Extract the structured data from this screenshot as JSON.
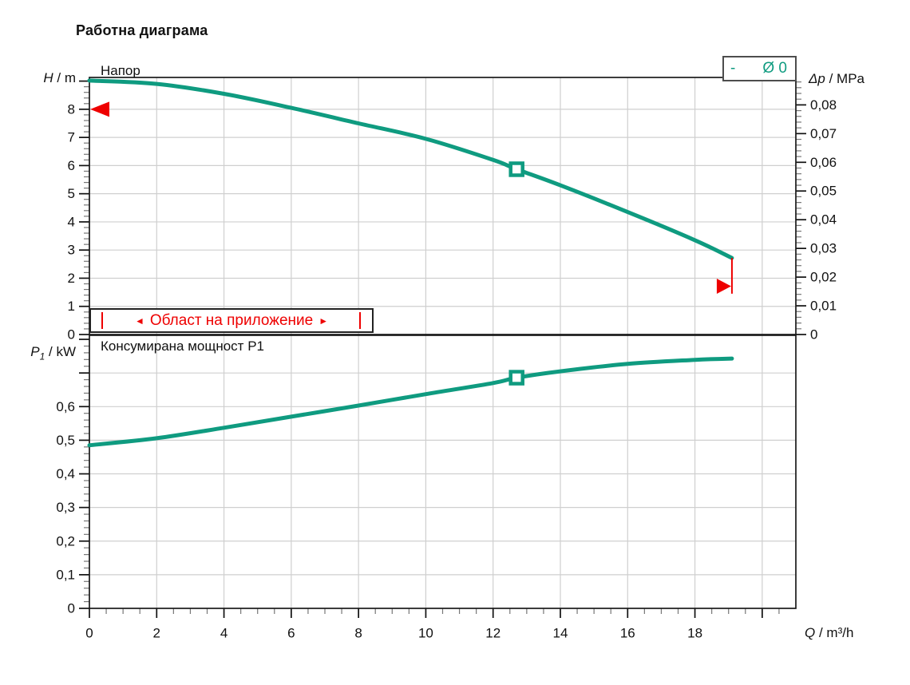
{
  "title": "Работна диаграма",
  "colors": {
    "curve": "#0f9b80",
    "red": "#ee0000",
    "grid": "#cfcfcf",
    "axis": "#1a1a1a",
    "major_tick": "#111111",
    "minor_tick": "#777777",
    "text": "#111111"
  },
  "legend": {
    "dash": "-",
    "label": "Ø 0"
  },
  "x_axis": {
    "var": "Q",
    "unit": " / m³/h",
    "min": 0,
    "max": 21,
    "major_step": 2,
    "minor_step": 0.5,
    "tick_labels": [
      "0",
      "2",
      "4",
      "6",
      "8",
      "10",
      "12",
      "14",
      "16",
      "18"
    ]
  },
  "chart_data": [
    {
      "type": "line",
      "name": "head-curve",
      "inplot_label": "Напор",
      "y_axis": {
        "var": "H",
        "unit": " / m",
        "min": 0,
        "max": 9.13,
        "major_step": 1,
        "minor_step": 0.2,
        "tick_labels": [
          "0",
          "1",
          "2",
          "3",
          "4",
          "5",
          "6",
          "7",
          "8"
        ]
      },
      "y2_axis": {
        "var": "Δp",
        "unit": " / MPa",
        "major_step": 0.01,
        "minor_step": 0.002,
        "mpa_per_m": 0.00981,
        "max": 0.0895,
        "tick_labels": [
          "0",
          "0,01",
          "0,02",
          "0,03",
          "0,04",
          "0,05",
          "0,06",
          "0,07",
          "0,08"
        ]
      },
      "x": [
        0,
        2,
        4,
        6,
        8,
        10,
        12,
        12.7,
        14,
        16,
        18,
        19.1
      ],
      "y": [
        9.02,
        8.9,
        8.55,
        8.05,
        7.5,
        6.95,
        6.2,
        5.87,
        5.3,
        4.35,
        3.35,
        2.72
      ],
      "duty_point": {
        "q": 12.7,
        "value": 5.87
      }
    },
    {
      "type": "line",
      "name": "power-curve",
      "inplot_label": "Консумирана мощност P1",
      "y_axis": {
        "var": "P",
        "sub": "1",
        "unit": " / kW",
        "min": 0,
        "max": 0.812,
        "major_step": 0.1,
        "minor_step": 0.02,
        "tick_labels": [
          "0",
          "0,1",
          "0,2",
          "0,3",
          "0,4",
          "0,5",
          "0,6"
        ]
      },
      "x": [
        0,
        2,
        4,
        6,
        8,
        10,
        12,
        12.7,
        14,
        16,
        18,
        19.1
      ],
      "y": [
        0.485,
        0.506,
        0.537,
        0.57,
        0.603,
        0.637,
        0.67,
        0.686,
        0.705,
        0.727,
        0.739,
        0.743
      ],
      "duty_point": {
        "q": 12.7,
        "value": 0.686
      }
    }
  ],
  "annotations": {
    "max_head_arrow": {
      "h": 8
    },
    "end_flag": {
      "q": 19.1,
      "h_from": 2.72,
      "h_to": 1.45
    },
    "application_range": {
      "text": "Област на приложение",
      "arrow_left": "◄",
      "arrow_right": "►",
      "q_from": 0,
      "q_to": 8.45,
      "h_from": 0.05,
      "h_to": 0.93
    }
  }
}
